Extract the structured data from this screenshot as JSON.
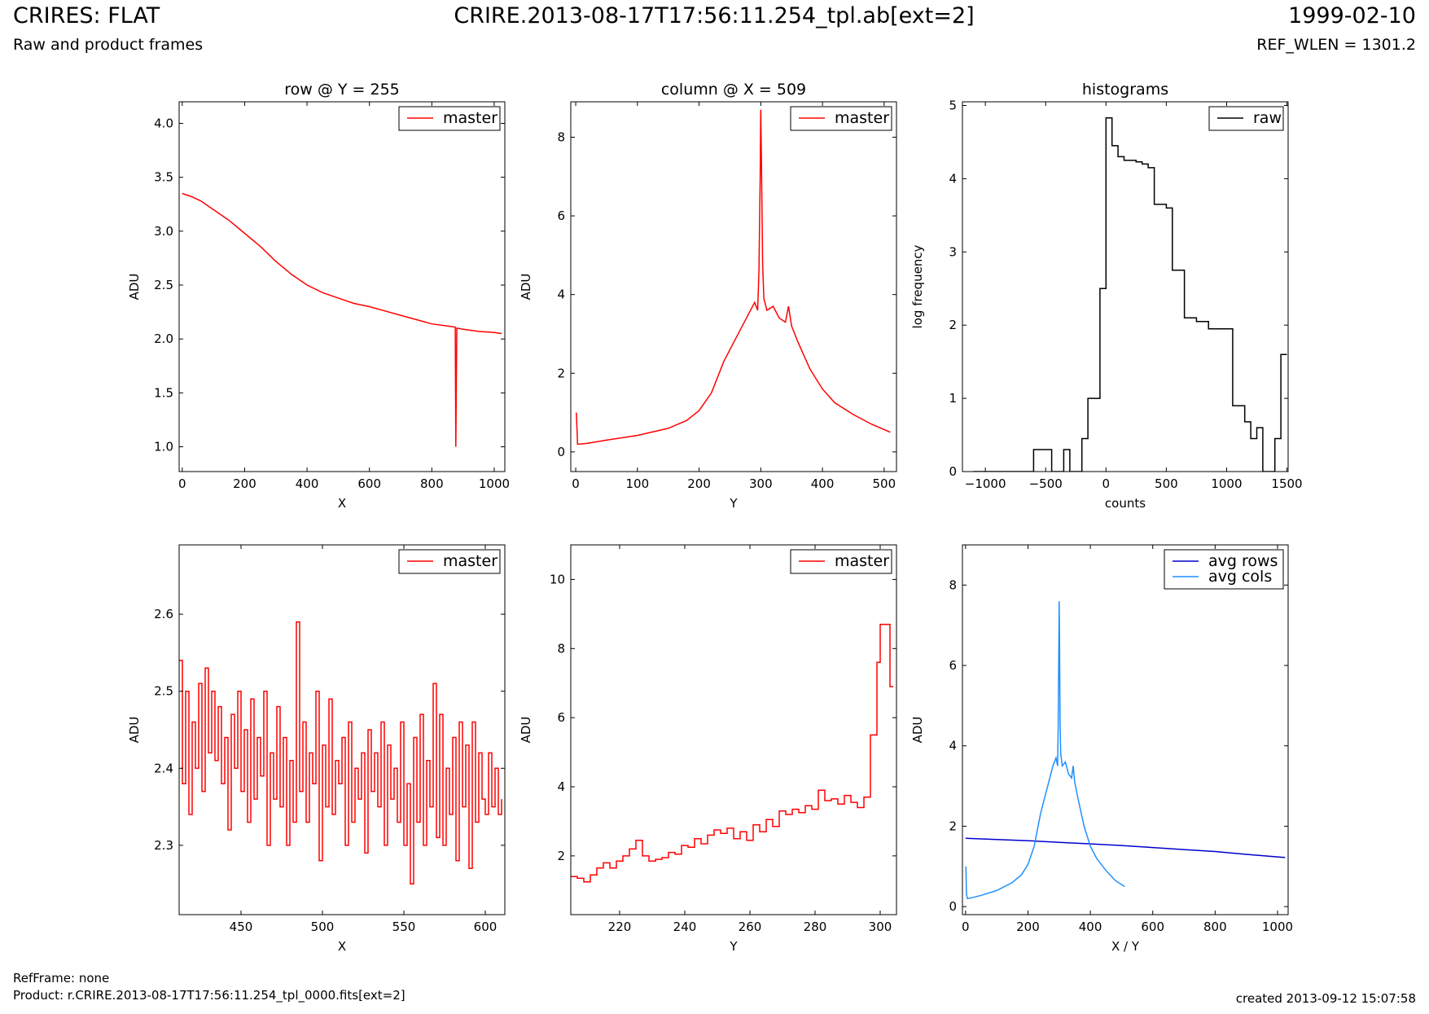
{
  "header": {
    "title_left": "CRIRES: FLAT",
    "subtitle_left": "Raw and product frames",
    "title_center": "CRIRE.2013-08-17T17:56:11.254_tpl.ab[ext=2]",
    "title_right": "1999-02-10",
    "subtitle_right": "REF_WLEN = 1301.2"
  },
  "footer": {
    "refframe": "RefFrame: none",
    "product": "Product: r.CRIRE.2013-08-17T17:56:11.254_tpl_0000.fits[ext=2]",
    "created": "created 2013-09-12 15:07:58"
  },
  "chart_data": [
    {
      "id": "row-plot",
      "type": "line",
      "title": "row @ Y = 255",
      "xlabel": "X",
      "ylabel": "ADU",
      "xlim": [
        -10,
        1034
      ],
      "ylim": [
        0.77,
        4.2
      ],
      "xticks": [
        0,
        200,
        400,
        600,
        800,
        1000
      ],
      "yticks": [
        1.0,
        1.5,
        2.0,
        2.5,
        3.0,
        3.5,
        4.0
      ],
      "ytick_decimals": 1,
      "series": [
        {
          "name": "master",
          "color": "#ff0000",
          "step": false,
          "x": [
            0,
            30,
            60,
            100,
            150,
            200,
            250,
            300,
            350,
            400,
            450,
            500,
            550,
            600,
            650,
            700,
            750,
            800,
            850,
            875,
            877,
            880,
            883,
            900,
            950,
            1000,
            1024
          ],
          "y": [
            3.35,
            3.32,
            3.28,
            3.2,
            3.1,
            2.98,
            2.86,
            2.72,
            2.6,
            2.5,
            2.43,
            2.38,
            2.33,
            2.3,
            2.26,
            2.22,
            2.18,
            2.14,
            2.12,
            2.11,
            1.0,
            2.1,
            2.1,
            2.09,
            2.07,
            2.06,
            2.05
          ]
        }
      ]
    },
    {
      "id": "column-plot",
      "type": "line",
      "title": "column @ X = 509",
      "xlabel": "Y",
      "ylabel": "ADU",
      "xlim": [
        -8,
        520
      ],
      "ylim": [
        -0.5,
        8.9
      ],
      "xticks": [
        0,
        100,
        200,
        300,
        400,
        500
      ],
      "yticks": [
        0,
        2,
        4,
        6,
        8
      ],
      "ytick_decimals": 0,
      "series": [
        {
          "name": "master",
          "color": "#ff0000",
          "step": false,
          "x": [
            1,
            2,
            3,
            6,
            20,
            50,
            100,
            150,
            180,
            200,
            220,
            240,
            260,
            270,
            280,
            290,
            295,
            297,
            299,
            300,
            301,
            303,
            305,
            310,
            320,
            330,
            340,
            345,
            350,
            360,
            380,
            400,
            420,
            450,
            480,
            510
          ],
          "y": [
            1.0,
            0.6,
            0.2,
            0.2,
            0.22,
            0.3,
            0.42,
            0.6,
            0.8,
            1.05,
            1.5,
            2.3,
            2.9,
            3.2,
            3.5,
            3.8,
            3.6,
            4.6,
            7.0,
            8.7,
            7.5,
            4.8,
            3.9,
            3.6,
            3.7,
            3.4,
            3.3,
            3.7,
            3.2,
            2.8,
            2.1,
            1.6,
            1.25,
            0.95,
            0.7,
            0.5
          ]
        }
      ]
    },
    {
      "id": "histogram-plot",
      "type": "line",
      "title": "histograms",
      "xlabel": "counts",
      "ylabel": "log frequency",
      "xlim": [
        -1190,
        1510
      ],
      "ylim": [
        0,
        5.05
      ],
      "xticks": [
        -1000,
        -500,
        0,
        500,
        1000,
        1500
      ],
      "yticks": [
        0,
        1,
        2,
        3,
        4,
        5
      ],
      "ytick_decimals": 0,
      "series": [
        {
          "name": "raw",
          "color": "#000000",
          "step": true,
          "x": [
            -1100,
            -600,
            -550,
            -450,
            -400,
            -350,
            -300,
            -250,
            -200,
            -150,
            -100,
            -50,
            0,
            50,
            100,
            150,
            200,
            250,
            300,
            350,
            400,
            450,
            500,
            550,
            600,
            650,
            700,
            750,
            800,
            850,
            900,
            950,
            1000,
            1050,
            1100,
            1150,
            1200,
            1250,
            1300,
            1350,
            1400,
            1450,
            1500
          ],
          "y": [
            0,
            0.3,
            0.3,
            0,
            0,
            0.3,
            0,
            0,
            0.45,
            1.0,
            1.0,
            2.5,
            4.83,
            4.45,
            4.3,
            4.25,
            4.25,
            4.23,
            4.2,
            4.15,
            3.65,
            3.65,
            3.6,
            2.75,
            2.75,
            2.1,
            2.1,
            2.05,
            2.05,
            1.95,
            1.95,
            1.95,
            1.95,
            0.9,
            0.9,
            0.68,
            0.45,
            0.6,
            0.0,
            0.0,
            0.45,
            1.6,
            1.6
          ]
        }
      ]
    },
    {
      "id": "row-zoom-plot",
      "type": "line",
      "title": "",
      "xlabel": "X",
      "ylabel": "ADU",
      "xlim": [
        412,
        612
      ],
      "ylim": [
        2.21,
        2.69
      ],
      "xticks": [
        450,
        500,
        550,
        600
      ],
      "yticks": [
        2.3,
        2.4,
        2.5,
        2.6
      ],
      "ytick_decimals": 1,
      "series": [
        {
          "name": "master",
          "color": "#ff0000",
          "step": true,
          "x": [
            412,
            414,
            416,
            418,
            420,
            422,
            424,
            426,
            428,
            430,
            432,
            434,
            436,
            438,
            440,
            442,
            444,
            446,
            448,
            450,
            452,
            454,
            456,
            458,
            460,
            462,
            464,
            466,
            468,
            470,
            472,
            474,
            476,
            478,
            480,
            482,
            484,
            486,
            488,
            490,
            492,
            494,
            496,
            498,
            500,
            502,
            504,
            506,
            508,
            510,
            512,
            514,
            516,
            518,
            520,
            522,
            524,
            526,
            528,
            530,
            532,
            534,
            536,
            538,
            540,
            542,
            544,
            546,
            548,
            550,
            552,
            554,
            556,
            558,
            560,
            562,
            564,
            566,
            568,
            570,
            572,
            574,
            576,
            578,
            580,
            582,
            584,
            586,
            588,
            590,
            592,
            594,
            596,
            598,
            600,
            602,
            604,
            606,
            608,
            610
          ],
          "y": [
            2.54,
            2.38,
            2.5,
            2.34,
            2.46,
            2.4,
            2.51,
            2.37,
            2.53,
            2.42,
            2.5,
            2.41,
            2.48,
            2.38,
            2.44,
            2.32,
            2.47,
            2.4,
            2.5,
            2.37,
            2.45,
            2.33,
            2.49,
            2.36,
            2.44,
            2.39,
            2.5,
            2.3,
            2.42,
            2.36,
            2.48,
            2.35,
            2.44,
            2.3,
            2.41,
            2.33,
            2.59,
            2.37,
            2.46,
            2.33,
            2.42,
            2.38,
            2.5,
            2.28,
            2.43,
            2.35,
            2.49,
            2.34,
            2.41,
            2.38,
            2.44,
            2.3,
            2.46,
            2.33,
            2.4,
            2.36,
            2.42,
            2.29,
            2.45,
            2.37,
            2.42,
            2.35,
            2.46,
            2.3,
            2.43,
            2.36,
            2.4,
            2.33,
            2.46,
            2.3,
            2.38,
            2.25,
            2.44,
            2.33,
            2.47,
            2.3,
            2.41,
            2.35,
            2.51,
            2.31,
            2.47,
            2.3,
            2.4,
            2.34,
            2.44,
            2.28,
            2.46,
            2.35,
            2.43,
            2.27,
            2.46,
            2.33,
            2.42,
            2.36,
            2.34,
            2.42,
            2.35,
            2.4,
            2.34,
            2.36
          ]
        }
      ]
    },
    {
      "id": "column-zoom-plot",
      "type": "line",
      "title": "",
      "xlabel": "Y",
      "ylabel": "ADU",
      "xlim": [
        205,
        305
      ],
      "ylim": [
        0.3,
        11.0
      ],
      "xticks": [
        220,
        240,
        260,
        280,
        300
      ],
      "yticks": [
        2,
        4,
        6,
        8,
        10
      ],
      "ytick_decimals": 0,
      "series": [
        {
          "name": "master",
          "color": "#ff0000",
          "step": true,
          "x": [
            205,
            207,
            209,
            211,
            213,
            215,
            217,
            219,
            221,
            223,
            225,
            227,
            229,
            231,
            233,
            235,
            237,
            239,
            241,
            243,
            245,
            247,
            249,
            251,
            253,
            255,
            257,
            259,
            261,
            263,
            265,
            267,
            269,
            271,
            273,
            275,
            277,
            279,
            281,
            283,
            285,
            287,
            289,
            291,
            293,
            295,
            297,
            299,
            300,
            301,
            303,
            304
          ],
          "y": [
            1.4,
            1.35,
            1.25,
            1.45,
            1.65,
            1.8,
            1.65,
            1.85,
            2.0,
            2.2,
            2.45,
            2.0,
            1.85,
            1.9,
            1.95,
            2.1,
            2.05,
            2.3,
            2.25,
            2.5,
            2.35,
            2.6,
            2.75,
            2.65,
            2.8,
            2.5,
            2.7,
            2.45,
            2.9,
            2.7,
            3.05,
            2.85,
            3.3,
            3.2,
            3.35,
            3.25,
            3.45,
            3.35,
            3.9,
            3.6,
            3.65,
            3.5,
            3.75,
            3.55,
            3.4,
            3.7,
            5.5,
            7.6,
            8.7,
            8.7,
            6.9,
            6.9
          ]
        }
      ]
    },
    {
      "id": "average-plot",
      "type": "line",
      "title": "",
      "xlabel": "X / Y",
      "ylabel": "ADU",
      "xlim": [
        -10,
        1034
      ],
      "ylim": [
        -0.2,
        9.0
      ],
      "xticks": [
        0,
        200,
        400,
        600,
        800,
        1000
      ],
      "yticks": [
        0,
        2,
        4,
        6,
        8
      ],
      "ytick_decimals": 0,
      "series": [
        {
          "name": "avg rows",
          "color": "#0000cc",
          "step": false,
          "x": [
            0,
            100,
            200,
            300,
            400,
            500,
            600,
            700,
            800,
            900,
            1024
          ],
          "y": [
            1.7,
            1.67,
            1.64,
            1.6,
            1.56,
            1.52,
            1.47,
            1.42,
            1.37,
            1.3,
            1.22
          ]
        },
        {
          "name": "avg cols",
          "color": "#1e90ff",
          "step": false,
          "x": [
            1,
            3,
            6,
            20,
            50,
            100,
            150,
            180,
            200,
            220,
            240,
            260,
            270,
            280,
            290,
            295,
            297,
            299,
            300,
            301,
            303,
            305,
            310,
            320,
            330,
            340,
            345,
            350,
            360,
            380,
            400,
            420,
            450,
            480,
            510
          ],
          "y": [
            1.0,
            0.3,
            0.2,
            0.22,
            0.28,
            0.4,
            0.6,
            0.8,
            1.05,
            1.5,
            2.3,
            2.9,
            3.2,
            3.5,
            3.7,
            3.5,
            4.5,
            6.5,
            7.6,
            6.8,
            4.6,
            3.8,
            3.5,
            3.6,
            3.3,
            3.2,
            3.5,
            3.1,
            2.7,
            2.0,
            1.5,
            1.2,
            0.9,
            0.65,
            0.5
          ]
        }
      ]
    }
  ]
}
